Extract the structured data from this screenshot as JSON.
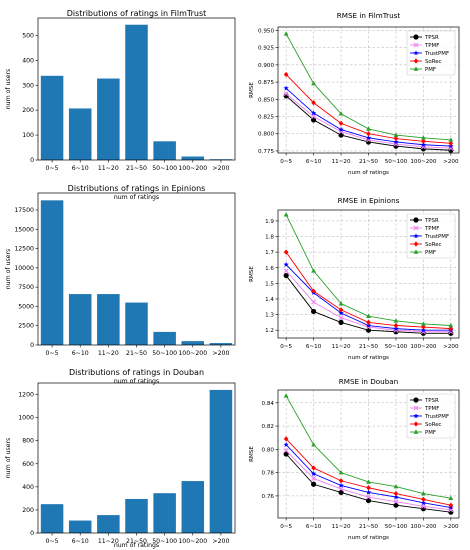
{
  "chart_data": [
    {
      "type": "bar",
      "title": "Distributions of ratings in FilmTrust",
      "xlabel": "num of ratings",
      "ylabel": "num of users",
      "categories": [
        "0~5",
        "6~10",
        "11~20",
        "21~50",
        "50~100",
        "100~200",
        ">200"
      ],
      "values": [
        338,
        207,
        327,
        543,
        75,
        14,
        3
      ],
      "ylim": [
        0,
        570
      ],
      "yticks": [
        0,
        100,
        200,
        300,
        400,
        500
      ],
      "ytick_labels": [
        "0",
        "100",
        "200",
        "300",
        "400",
        "500"
      ],
      "bar_color": "#1f77b4",
      "grid": false
    },
    {
      "type": "line",
      "title": "RMSE in FilmTrust",
      "xlabel": "num of ratings",
      "ylabel": "RMSE",
      "categories": [
        "0~5",
        "6~10",
        "11~20",
        "21~50",
        "50~100",
        "100~200",
        ">200"
      ],
      "ylim": [
        0.772,
        0.955
      ],
      "yticks": [
        0.775,
        0.8,
        0.825,
        0.85,
        0.875,
        0.9,
        0.925,
        0.95
      ],
      "ytick_labels": [
        "0.775",
        "0.800",
        "0.825",
        "0.850",
        "0.875",
        "0.900",
        "0.925",
        "0.950"
      ],
      "grid": true,
      "legend": "top-right",
      "series": [
        {
          "name": "TPSR",
          "color": "#000000",
          "marker": "o",
          "values": [
            0.855,
            0.82,
            0.798,
            0.788,
            0.782,
            0.778,
            0.776
          ]
        },
        {
          "name": "TPMF",
          "color": "#ee82ee",
          "marker": "x",
          "values": [
            0.858,
            0.825,
            0.803,
            0.791,
            0.785,
            0.781,
            0.779
          ]
        },
        {
          "name": "TrustPMF",
          "color": "#0000ff",
          "marker": "*",
          "values": [
            0.866,
            0.83,
            0.806,
            0.794,
            0.788,
            0.784,
            0.782
          ]
        },
        {
          "name": "SoRec",
          "color": "#ff0000",
          "marker": "D",
          "values": [
            0.886,
            0.845,
            0.815,
            0.8,
            0.793,
            0.789,
            0.786
          ]
        },
        {
          "name": "PMF",
          "color": "#2ca02c",
          "marker": "^",
          "values": [
            0.945,
            0.873,
            0.829,
            0.807,
            0.798,
            0.794,
            0.791
          ]
        }
      ]
    },
    {
      "type": "bar",
      "title": "Distributions of ratings in Epinions",
      "xlabel": "num of ratings",
      "ylabel": "num of users",
      "categories": [
        "0~5",
        "6~10",
        "11~20",
        "21~50",
        "50~100",
        "100~200",
        ">200"
      ],
      "values": [
        18750,
        6600,
        6600,
        5500,
        1700,
        500,
        250
      ],
      "ylim": [
        0,
        19700
      ],
      "yticks": [
        0,
        2500,
        5000,
        7500,
        10000,
        12500,
        15000,
        17500
      ],
      "ytick_labels": [
        "0",
        "2500",
        "5000",
        "7500",
        "10000",
        "12500",
        "15000",
        "17500"
      ],
      "bar_color": "#1f77b4",
      "grid": false
    },
    {
      "type": "line",
      "title": "RMSE in Epinions",
      "xlabel": "num of ratings",
      "ylabel": "RMSE",
      "categories": [
        "0~5",
        "6~10",
        "11~20",
        "21~50",
        "50~100",
        "100~200",
        ">200"
      ],
      "ylim": [
        1.15,
        1.97
      ],
      "yticks": [
        1.2,
        1.3,
        1.4,
        1.5,
        1.6,
        1.7,
        1.8,
        1.9
      ],
      "ytick_labels": [
        "1.2",
        "1.3",
        "1.4",
        "1.5",
        "1.6",
        "1.7",
        "1.8",
        "1.9"
      ],
      "grid": true,
      "legend": "top-right",
      "series": [
        {
          "name": "TPSR",
          "color": "#000000",
          "marker": "o",
          "values": [
            1.55,
            1.32,
            1.25,
            1.2,
            1.19,
            1.18,
            1.18
          ]
        },
        {
          "name": "TPMF",
          "color": "#ee82ee",
          "marker": "x",
          "values": [
            1.58,
            1.38,
            1.28,
            1.22,
            1.2,
            1.19,
            1.19
          ]
        },
        {
          "name": "TrustPMF",
          "color": "#0000ff",
          "marker": "*",
          "values": [
            1.62,
            1.44,
            1.31,
            1.23,
            1.21,
            1.2,
            1.2
          ]
        },
        {
          "name": "SoRec",
          "color": "#ff0000",
          "marker": "D",
          "values": [
            1.7,
            1.45,
            1.33,
            1.25,
            1.23,
            1.22,
            1.21
          ]
        },
        {
          "name": "PMF",
          "color": "#2ca02c",
          "marker": "^",
          "values": [
            1.94,
            1.58,
            1.37,
            1.29,
            1.26,
            1.24,
            1.23
          ]
        }
      ]
    },
    {
      "type": "bar",
      "title": "Distributions of ratings in Douban",
      "xlabel": "num of ratings",
      "ylabel": "num of users",
      "categories": [
        "0~5",
        "6~10",
        "11~20",
        "21~50",
        "50~100",
        "100~200",
        ">200"
      ],
      "values": [
        250,
        108,
        155,
        295,
        345,
        450,
        1240
      ],
      "ylim": [
        0,
        1300
      ],
      "yticks": [
        0,
        200,
        400,
        600,
        800,
        1000,
        1200
      ],
      "ytick_labels": [
        "0",
        "200",
        "400",
        "600",
        "800",
        "1000",
        "1200"
      ],
      "bar_color": "#1f77b4",
      "grid": false
    },
    {
      "type": "line",
      "title": "RMSE in Douban",
      "xlabel": "num of ratings",
      "ylabel": "RMSE",
      "categories": [
        "0~5",
        "6~10",
        "11~20",
        "21~50",
        "50~100",
        "100~200",
        ">200"
      ],
      "ylim": [
        0.741,
        0.851
      ],
      "yticks": [
        0.76,
        0.78,
        0.8,
        0.82,
        0.84
      ],
      "ytick_labels": [
        "0.76",
        "0.78",
        "0.80",
        "0.82",
        "0.84"
      ],
      "grid": true,
      "legend": "top-right",
      "series": [
        {
          "name": "TPSR",
          "color": "#000000",
          "marker": "o",
          "values": [
            0.796,
            0.77,
            0.763,
            0.756,
            0.752,
            0.749,
            0.746
          ]
        },
        {
          "name": "TPMF",
          "color": "#ee82ee",
          "marker": "x",
          "values": [
            0.799,
            0.775,
            0.766,
            0.759,
            0.755,
            0.751,
            0.748
          ]
        },
        {
          "name": "TrustPMF",
          "color": "#0000ff",
          "marker": "*",
          "values": [
            0.804,
            0.779,
            0.769,
            0.763,
            0.759,
            0.754,
            0.75
          ]
        },
        {
          "name": "SoRec",
          "color": "#ff0000",
          "marker": "D",
          "values": [
            0.809,
            0.784,
            0.773,
            0.767,
            0.762,
            0.757,
            0.752
          ]
        },
        {
          "name": "PMF",
          "color": "#2ca02c",
          "marker": "^",
          "values": [
            0.846,
            0.804,
            0.78,
            0.772,
            0.768,
            0.762,
            0.758
          ]
        }
      ]
    }
  ]
}
